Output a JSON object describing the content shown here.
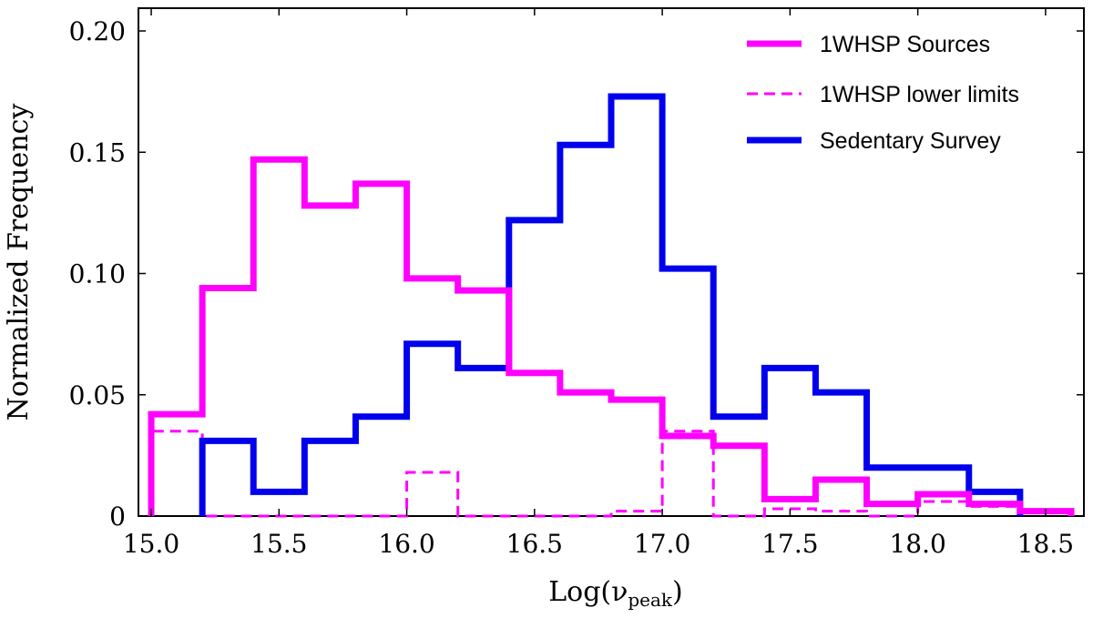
{
  "chart_data": {
    "type": "histogram",
    "xlabel": "Log(ν",
    "xlabel_sub": "peak",
    "xlabel_close": ")",
    "ylabel": "Normalized Frequency",
    "xlim": [
      14.95,
      18.65
    ],
    "ylim": [
      0,
      0.21
    ],
    "xticks": [
      15.0,
      15.5,
      16.0,
      16.5,
      17.0,
      17.5,
      18.0,
      18.5
    ],
    "xtick_labels": [
      "15.0",
      "15.5",
      "16.0",
      "16.5",
      "17.0",
      "17.5",
      "18.0",
      "18.5"
    ],
    "yticks": [
      0,
      0.05,
      0.1,
      0.15,
      0.2
    ],
    "ytick_labels": [
      "0",
      "0.05",
      "0.10",
      "0.15",
      "0.20"
    ],
    "grid": false,
    "legend_position": "top-right",
    "series": [
      {
        "name": "1WHSP Sources",
        "color": "#ff00ff",
        "style": "solid",
        "bin_edges": [
          15.0,
          15.2,
          15.4,
          15.6,
          15.8,
          16.0,
          16.2,
          16.4,
          16.6,
          16.8,
          17.0,
          17.2,
          17.4,
          17.6,
          17.8,
          18.0,
          18.2,
          18.4,
          18.6
        ],
        "values": [
          0.042,
          0.094,
          0.147,
          0.128,
          0.137,
          0.098,
          0.093,
          0.059,
          0.051,
          0.048,
          0.033,
          0.029,
          0.007,
          0.015,
          0.005,
          0.009,
          0.005,
          0.002
        ]
      },
      {
        "name": "1WHSP lower limits",
        "color": "#ff00ff",
        "style": "dashed",
        "bin_edges": [
          15.0,
          15.2,
          15.4,
          15.6,
          15.8,
          16.0,
          16.2,
          16.4,
          16.6,
          16.8,
          17.0,
          17.2,
          17.4,
          17.6,
          17.8,
          18.0,
          18.2,
          18.4
        ],
        "values": [
          0.035,
          0,
          0,
          0,
          0,
          0.018,
          0,
          0,
          0,
          0.002,
          0.035,
          0,
          0.003,
          0.002,
          0,
          0.006,
          0.004
        ]
      },
      {
        "name": "Sedentary Survey",
        "color": "#0000ee",
        "style": "solid",
        "bin_edges": [
          15.2,
          15.4,
          15.6,
          15.8,
          16.0,
          16.2,
          16.4,
          16.6,
          16.8,
          17.0,
          17.2,
          17.4,
          17.6,
          17.8,
          18.0,
          18.2,
          18.4
        ],
        "values": [
          0.031,
          0.01,
          0.031,
          0.041,
          0.071,
          0.061,
          0.122,
          0.153,
          0.173,
          0.102,
          0.041,
          0.061,
          0.051,
          0.02,
          0.02,
          0.01
        ]
      }
    ]
  }
}
